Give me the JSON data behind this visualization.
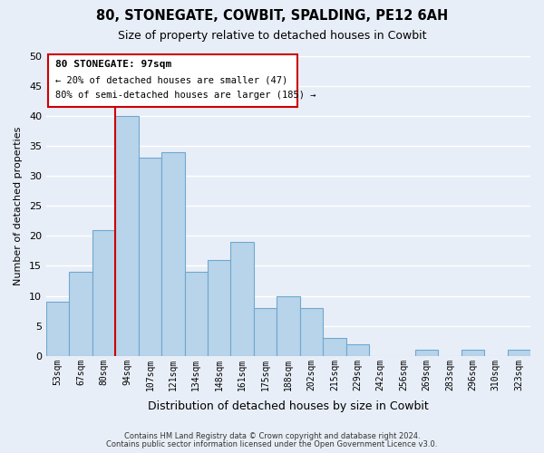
{
  "title": "80, STONEGATE, COWBIT, SPALDING, PE12 6AH",
  "subtitle": "Size of property relative to detached houses in Cowbit",
  "xlabel": "Distribution of detached houses by size in Cowbit",
  "ylabel": "Number of detached properties",
  "bar_color": "#b8d4ea",
  "bar_edge_color": "#6fa8d0",
  "bins": [
    "53sqm",
    "67sqm",
    "80sqm",
    "94sqm",
    "107sqm",
    "121sqm",
    "134sqm",
    "148sqm",
    "161sqm",
    "175sqm",
    "188sqm",
    "202sqm",
    "215sqm",
    "229sqm",
    "242sqm",
    "256sqm",
    "269sqm",
    "283sqm",
    "296sqm",
    "310sqm",
    "323sqm"
  ],
  "values": [
    9,
    14,
    21,
    40,
    33,
    34,
    14,
    16,
    19,
    8,
    10,
    8,
    3,
    2,
    0,
    0,
    1,
    0,
    1,
    0,
    1
  ],
  "ylim": [
    0,
    50
  ],
  "yticks": [
    0,
    5,
    10,
    15,
    20,
    25,
    30,
    35,
    40,
    45,
    50
  ],
  "marker_label": "80 STONEGATE: 97sqm",
  "annotation_line1": "← 20% of detached houses are smaller (47)",
  "annotation_line2": "80% of semi-detached houses are larger (185) →",
  "footer1": "Contains HM Land Registry data © Crown copyright and database right 2024.",
  "footer2": "Contains public sector information licensed under the Open Government Licence v3.0.",
  "background_color": "#e8eef7",
  "grid_color": "#ffffff",
  "line_color": "#cc0000",
  "marker_bin_index": 3
}
